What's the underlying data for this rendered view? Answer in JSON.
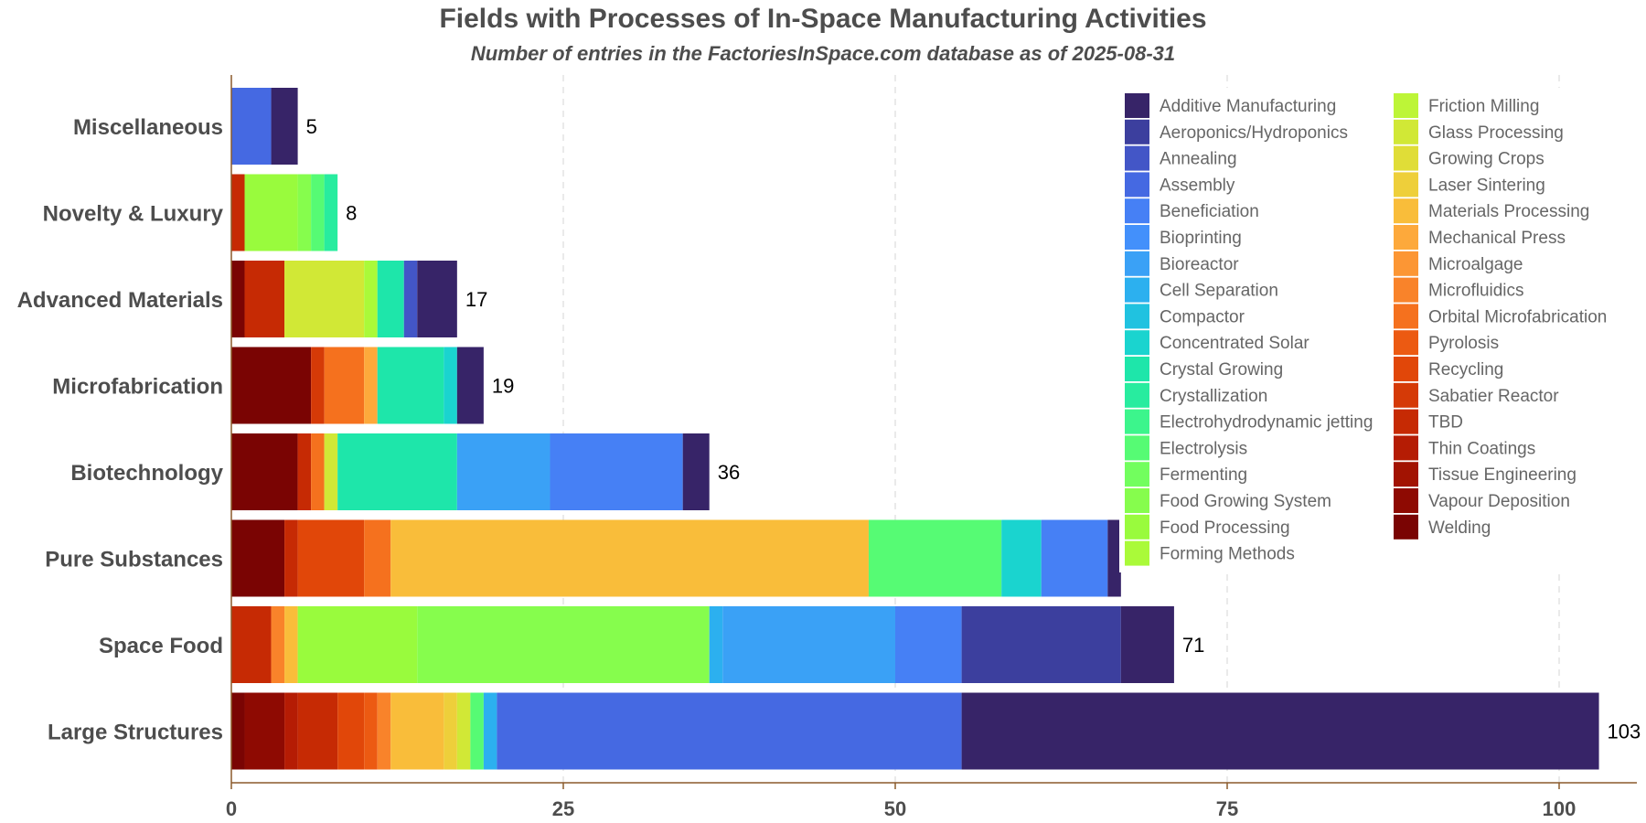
{
  "chart_data": {
    "type": "bar",
    "orientation": "horizontal",
    "stacked": true,
    "title": "Fields with Processes of In-Space Manufacturing Activities",
    "subtitle": "Number of entries in the FactoriesInSpace.com database as of 2025-08-31",
    "xlabel": "",
    "ylabel": "",
    "xlim": [
      0,
      105
    ],
    "x_ticks": [
      0,
      25,
      50,
      75,
      100
    ],
    "grid": "vertical dashed",
    "legend_position": "top-right",
    "categories": [
      "Miscellaneous",
      "Novelty & Luxury",
      "Advanced Materials",
      "Microfabrication",
      "Biotechnology",
      "Pure Substances",
      "Space Food",
      "Large Structures"
    ],
    "totals": [
      "5",
      "8",
      "17",
      "19",
      "36",
      "67",
      "71",
      "103"
    ],
    "series": [
      {
        "name": "Welding",
        "color": "#7a0403",
        "values": [
          0,
          0,
          1,
          6,
          5,
          4,
          0,
          1
        ]
      },
      {
        "name": "Vapour Deposition",
        "color": "#8e0a02",
        "values": [
          0,
          0,
          0,
          0,
          0,
          0,
          0,
          3
        ]
      },
      {
        "name": "Tissue Engineering",
        "color": "#a21302",
        "values": [
          0,
          0,
          0,
          0,
          0,
          0,
          0,
          0
        ]
      },
      {
        "name": "Thin Coatings",
        "color": "#b51c04",
        "values": [
          0,
          0,
          0,
          0,
          0,
          0,
          0,
          1
        ]
      },
      {
        "name": "TBD",
        "color": "#c62a04",
        "values": [
          0,
          1,
          3,
          0,
          1,
          1,
          3,
          3
        ]
      },
      {
        "name": "Sabatier Reactor",
        "color": "#d53a07",
        "values": [
          0,
          0,
          0,
          1,
          0,
          0,
          0,
          0
        ]
      },
      {
        "name": "Recycling",
        "color": "#e14709",
        "values": [
          0,
          0,
          0,
          0,
          0,
          5,
          0,
          2
        ]
      },
      {
        "name": "Pyrolosis",
        "color": "#ec5a12",
        "values": [
          0,
          0,
          0,
          0,
          0,
          0,
          0,
          1
        ]
      },
      {
        "name": "Orbital Microfabrication",
        "color": "#f5711e",
        "values": [
          0,
          0,
          0,
          3,
          1,
          2,
          0,
          0
        ]
      },
      {
        "name": "Microfluidics",
        "color": "#f9832a",
        "values": [
          0,
          0,
          0,
          0,
          0,
          0,
          1,
          1
        ]
      },
      {
        "name": "Microalgage",
        "color": "#fc9634",
        "values": [
          0,
          0,
          0,
          0,
          0,
          0,
          0,
          0
        ]
      },
      {
        "name": "Mechanical Press",
        "color": "#fda93b",
        "values": [
          0,
          0,
          0,
          1,
          0,
          0,
          0,
          0
        ]
      },
      {
        "name": "Materials Processing",
        "color": "#f9bd3a",
        "values": [
          0,
          0,
          0,
          0,
          0,
          36,
          1,
          4
        ]
      },
      {
        "name": "Laser Sintering",
        "color": "#eecf3a",
        "values": [
          0,
          0,
          0,
          0,
          0,
          0,
          0,
          1
        ]
      },
      {
        "name": "Growing Crops",
        "color": "#e0dd37",
        "values": [
          0,
          0,
          0,
          0,
          0,
          0,
          0,
          0
        ]
      },
      {
        "name": "Glass Processing",
        "color": "#d1e836",
        "values": [
          0,
          0,
          6,
          0,
          1,
          0,
          0,
          1
        ]
      },
      {
        "name": "Friction Milling",
        "color": "#bdf537",
        "values": [
          0,
          0,
          0,
          0,
          0,
          0,
          0,
          0
        ]
      },
      {
        "name": "Forming Methods",
        "color": "#aafa39",
        "values": [
          0,
          0,
          1,
          0,
          0,
          0,
          0,
          0
        ]
      },
      {
        "name": "Food Processing",
        "color": "#99fb3d",
        "values": [
          0,
          4,
          0,
          0,
          0,
          0,
          9,
          0
        ]
      },
      {
        "name": "Food Growing System",
        "color": "#86fd4d",
        "values": [
          0,
          1,
          0,
          0,
          0,
          0,
          22,
          0
        ]
      },
      {
        "name": "Fermenting",
        "color": "#72fe5e",
        "values": [
          0,
          0,
          0,
          0,
          0,
          0,
          0,
          0
        ]
      },
      {
        "name": "Electrolysis",
        "color": "#56fb74",
        "values": [
          0,
          1,
          0,
          0,
          0,
          10,
          0,
          1
        ]
      },
      {
        "name": "Electrohydrodynamic jetting",
        "color": "#3cf58c",
        "values": [
          0,
          0,
          0,
          0,
          0,
          0,
          0,
          0
        ]
      },
      {
        "name": "Crystallization",
        "color": "#28ec9f",
        "values": [
          0,
          1,
          0,
          0,
          0,
          0,
          0,
          0
        ]
      },
      {
        "name": "Crystal Growing",
        "color": "#1ee6aa",
        "values": [
          0,
          0,
          2,
          5,
          9,
          0,
          0,
          0
        ]
      },
      {
        "name": "Concentrated Solar",
        "color": "#1ad4cf",
        "values": [
          0,
          0,
          0,
          1,
          0,
          3,
          0,
          0
        ]
      },
      {
        "name": "Compactor",
        "color": "#20c2e0",
        "values": [
          0,
          0,
          0,
          0,
          0,
          0,
          0,
          0
        ]
      },
      {
        "name": "Cell Separation",
        "color": "#2cb0ef",
        "values": [
          0,
          0,
          0,
          0,
          0,
          0,
          1,
          1
        ]
      },
      {
        "name": "Bioreactor",
        "color": "#3aa1f6",
        "values": [
          0,
          0,
          0,
          0,
          7,
          0,
          13,
          0
        ]
      },
      {
        "name": "Bioprinting",
        "color": "#4390fb",
        "values": [
          0,
          0,
          0,
          0,
          0,
          0,
          0,
          0
        ]
      },
      {
        "name": "Beneficiation",
        "color": "#4680f5",
        "values": [
          0,
          0,
          0,
          0,
          10,
          5,
          5,
          0
        ]
      },
      {
        "name": "Assembly",
        "color": "#4569e2",
        "values": [
          3,
          0,
          0,
          0,
          0,
          0,
          0,
          35
        ]
      },
      {
        "name": "Annealing",
        "color": "#4356c7",
        "values": [
          0,
          0,
          1,
          0,
          0,
          0,
          0,
          0
        ]
      },
      {
        "name": "Aeroponics/Hydroponics",
        "color": "#3c3f9e",
        "values": [
          0,
          0,
          0,
          0,
          0,
          0,
          12,
          0
        ]
      },
      {
        "name": "Additive Manufacturing",
        "color": "#372468",
        "values": [
          2,
          0,
          3,
          2,
          2,
          1,
          4,
          48
        ]
      }
    ],
    "legend_order": [
      "Additive Manufacturing",
      "Aeroponics/Hydroponics",
      "Annealing",
      "Assembly",
      "Beneficiation",
      "Bioprinting",
      "Bioreactor",
      "Cell Separation",
      "Compactor",
      "Concentrated Solar",
      "Crystal Growing",
      "Crystallization",
      "Electrohydrodynamic jetting",
      "Electrolysis",
      "Fermenting",
      "Food Growing System",
      "Food Processing",
      "Forming Methods",
      "Friction Milling",
      "Glass Processing",
      "Growing Crops",
      "Laser Sintering",
      "Materials Processing",
      "Mechanical Press",
      "Microalgage",
      "Microfluidics",
      "Orbital Microfabrication",
      "Pyrolosis",
      "Recycling",
      "Sabatier Reactor",
      "TBD",
      "Thin Coatings",
      "Tissue Engineering",
      "Vapour Deposition",
      "Welding"
    ]
  }
}
